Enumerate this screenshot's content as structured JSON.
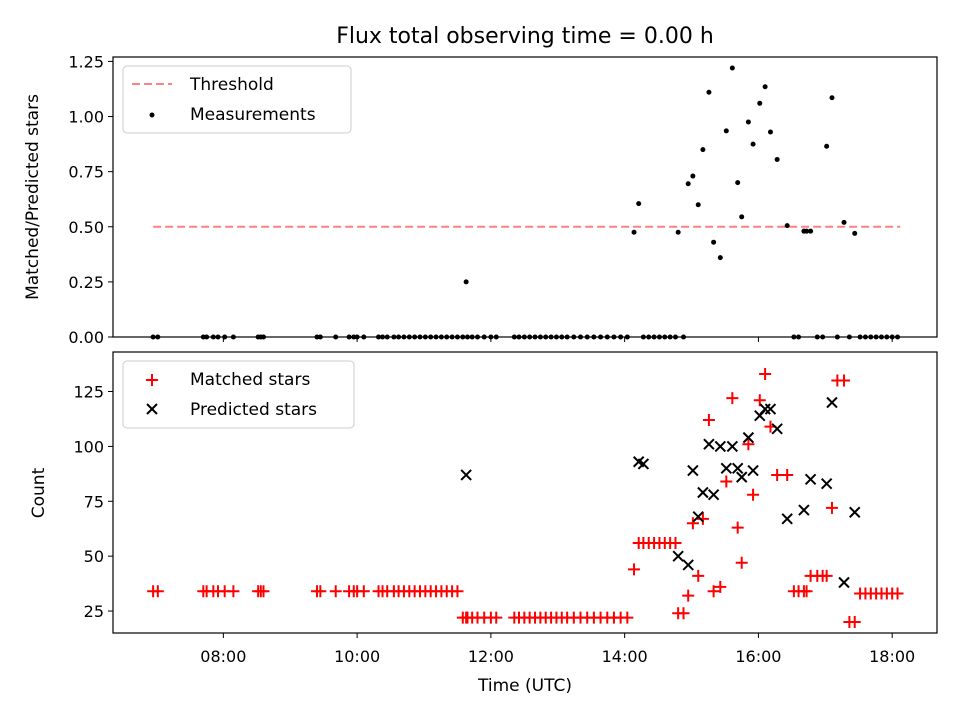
{
  "chart_data": {
    "type": "scatter",
    "title": "Flux total observing time = 0.00 h",
    "xlabel": "Time (UTC)",
    "xticks": [
      "08:00",
      "10:00",
      "12:00",
      "14:00",
      "16:00",
      "18:00"
    ],
    "xtick_hours": [
      8,
      10,
      12,
      14,
      16,
      18
    ],
    "xlim_hours": [
      6.35,
      18.67
    ],
    "panels": [
      {
        "ylabel": "Matched/Predicted stars",
        "ylim": [
          0,
          1.27
        ],
        "yticks": [
          "0.00",
          "0.25",
          "0.50",
          "0.75",
          "1.00",
          "1.25"
        ],
        "ytick_values": [
          0,
          0.25,
          0.5,
          0.75,
          1.0,
          1.25
        ],
        "legend": [
          "Threshold",
          "Measurements"
        ],
        "legend_position": "upper-left",
        "threshold": {
          "name": "Threshold",
          "y": 0.5,
          "x_range": [
            6.95,
            18.12
          ],
          "color": "#ff8080"
        },
        "series": [
          {
            "name": "Measurements",
            "marker": "dot",
            "color": "#000000",
            "x": [
              6.95,
              7.02,
              7.7,
              7.75,
              7.85,
              7.92,
              8.02,
              8.15,
              8.52,
              8.56,
              8.6,
              9.4,
              9.45,
              9.68,
              9.88,
              9.95,
              10.0,
              10.1,
              10.32,
              10.38,
              10.45,
              10.55,
              10.62,
              10.7,
              10.78,
              10.86,
              10.94,
              11.02,
              11.1,
              11.18,
              11.26,
              11.34,
              11.42,
              11.5,
              11.58,
              11.63,
              11.65,
              11.72,
              11.8,
              11.9,
              12.0,
              12.08,
              12.35,
              12.42,
              12.5,
              12.58,
              12.66,
              12.74,
              12.82,
              12.9,
              12.98,
              13.06,
              13.14,
              13.24,
              13.34,
              13.44,
              13.54,
              13.64,
              13.74,
              13.84,
              13.94,
              14.04,
              14.14,
              14.21,
              14.28,
              14.36,
              14.44,
              14.52,
              14.6,
              14.68,
              14.76,
              14.8,
              14.88,
              14.95,
              15.02,
              15.1,
              15.17,
              15.26,
              15.33,
              15.43,
              15.52,
              15.61,
              15.69,
              15.75,
              15.85,
              15.92,
              16.02,
              16.1,
              16.18,
              16.28,
              16.43,
              16.53,
              16.6,
              16.68,
              16.72,
              16.78,
              16.88,
              16.96,
              17.02,
              17.1,
              17.18,
              17.28,
              17.36,
              17.44,
              17.52,
              17.6,
              17.68,
              17.76,
              17.84,
              17.92,
              18.0,
              18.08
            ],
            "y": [
              0,
              0,
              0,
              0,
              0,
              0,
              0,
              0,
              0,
              0,
              0,
              0,
              0,
              0,
              0,
              0,
              0,
              0,
              0,
              0,
              0,
              0,
              0,
              0,
              0,
              0,
              0,
              0,
              0,
              0,
              0,
              0,
              0,
              0,
              0,
              0.25,
              0,
              0,
              0,
              0,
              0,
              0,
              0,
              0,
              0,
              0,
              0,
              0,
              0,
              0,
              0,
              0,
              0,
              0,
              0,
              0,
              0,
              0,
              0,
              0,
              0,
              0,
              0.475,
              0.605,
              0,
              0,
              0,
              0,
              0,
              0,
              0,
              0.475,
              0,
              0.695,
              0.73,
              0.6,
              0.85,
              1.11,
              0.43,
              0.36,
              0.935,
              1.22,
              0.7,
              0.545,
              0.975,
              0.875,
              1.06,
              1.135,
              0.93,
              0.805,
              0.505,
              0,
              0,
              0.48,
              0.48,
              0.48,
              0,
              0,
              0.865,
              1.085,
              0,
              0.52,
              0,
              0.47,
              0,
              0,
              0,
              0,
              0,
              0,
              0,
              0
            ]
          }
        ]
      },
      {
        "ylabel": "Count",
        "ylim": [
          15,
          143
        ],
        "yticks": [
          "25",
          "50",
          "75",
          "100",
          "125"
        ],
        "ytick_values": [
          25,
          50,
          75,
          100,
          125
        ],
        "legend": [
          "Matched stars",
          "Predicted stars"
        ],
        "legend_position": "upper-left",
        "series": [
          {
            "name": "Matched stars",
            "marker": "plus",
            "color": "#ff0000",
            "x": [
              6.95,
              7.02,
              7.7,
              7.75,
              7.85,
              7.92,
              8.02,
              8.15,
              8.52,
              8.56,
              8.6,
              9.4,
              9.45,
              9.68,
              9.88,
              9.95,
              10.0,
              10.1,
              10.32,
              10.38,
              10.45,
              10.55,
              10.62,
              10.7,
              10.78,
              10.86,
              10.94,
              11.02,
              11.1,
              11.18,
              11.26,
              11.34,
              11.42,
              11.5,
              11.58,
              11.63,
              11.65,
              11.72,
              11.8,
              11.9,
              12.0,
              12.08,
              12.35,
              12.42,
              12.5,
              12.58,
              12.66,
              12.74,
              12.82,
              12.9,
              12.98,
              13.06,
              13.14,
              13.24,
              13.34,
              13.44,
              13.54,
              13.64,
              13.74,
              13.84,
              13.94,
              14.04,
              14.14,
              14.21,
              14.28,
              14.36,
              14.44,
              14.52,
              14.6,
              14.68,
              14.76,
              14.8,
              14.88,
              14.95,
              15.02,
              15.1,
              15.17,
              15.26,
              15.33,
              15.43,
              15.52,
              15.61,
              15.69,
              15.75,
              15.85,
              15.92,
              16.02,
              16.1,
              16.18,
              16.28,
              16.43,
              16.53,
              16.6,
              16.68,
              16.72,
              16.78,
              16.88,
              16.96,
              17.02,
              17.1,
              17.18,
              17.28,
              17.36,
              17.44,
              17.52,
              17.6,
              17.68,
              17.76,
              17.84,
              17.92,
              18.0,
              18.08
            ],
            "y": [
              34,
              34,
              34,
              34,
              34,
              34,
              34,
              34,
              34,
              34,
              34,
              34,
              34,
              34,
              34,
              34,
              34,
              34,
              34,
              34,
              34,
              34,
              34,
              34,
              34,
              34,
              34,
              34,
              34,
              34,
              34,
              34,
              34,
              34,
              22,
              22,
              22,
              22,
              22,
              22,
              22,
              22,
              22,
              22,
              22,
              22,
              22,
              22,
              22,
              22,
              22,
              22,
              22,
              22,
              22,
              22,
              22,
              22,
              22,
              22,
              22,
              22,
              44,
              56,
              56,
              56,
              56,
              56,
              56,
              56,
              56,
              24,
              24,
              32,
              65,
              41,
              67,
              112,
              34,
              36,
              84,
              122,
              63,
              47,
              101,
              78,
              121,
              133,
              109,
              87,
              87,
              34,
              34,
              34,
              34,
              41,
              41,
              41,
              41,
              72,
              130,
              130,
              20,
              20,
              33,
              33,
              33,
              33,
              33,
              33,
              33,
              33
            ]
          },
          {
            "name": "Predicted stars",
            "marker": "x",
            "color": "#000000",
            "x": [
              11.63,
              14.21,
              14.28,
              14.8,
              14.95,
              15.02,
              15.1,
              15.17,
              15.26,
              15.33,
              15.43,
              15.52,
              15.61,
              15.69,
              15.75,
              15.85,
              15.92,
              16.02,
              16.1,
              16.18,
              16.28,
              16.43,
              16.68,
              16.78,
              17.02,
              17.1,
              17.28,
              17.44
            ],
            "y": [
              87,
              93,
              92,
              50,
              46,
              89,
              68,
              79,
              101,
              78,
              100,
              90,
              100,
              90,
              86,
              104,
              89,
              114,
              117,
              117,
              108,
              67,
              71,
              85,
              83,
              120,
              38,
              70
            ]
          }
        ]
      }
    ]
  }
}
